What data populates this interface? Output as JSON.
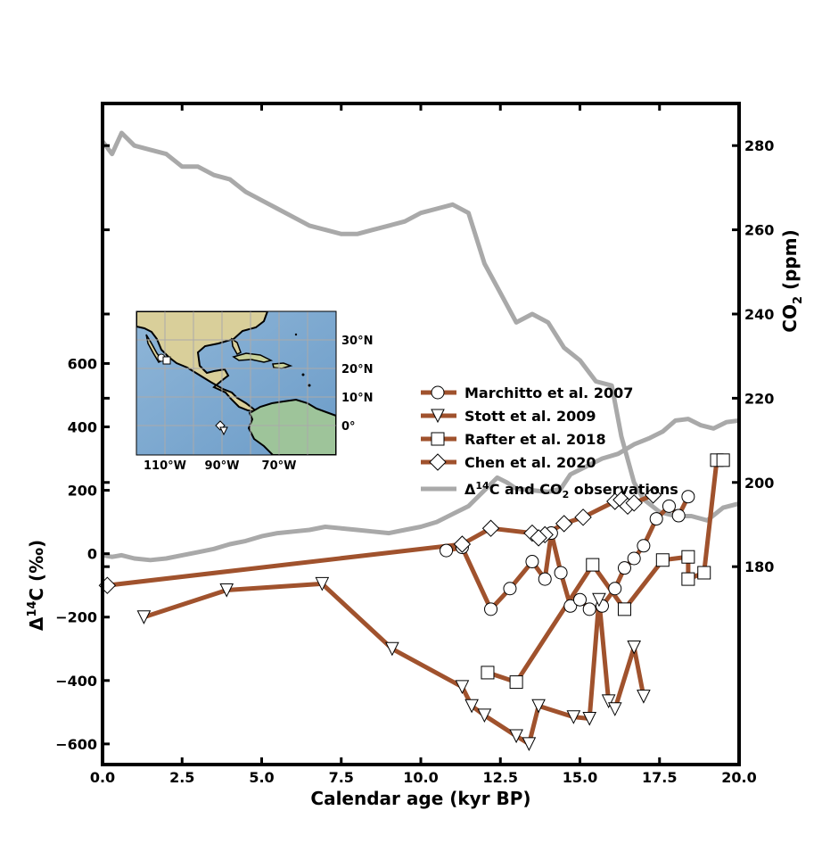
{
  "chart_data": {
    "type": "line",
    "xlabel": "Calendar age (kyr BP)",
    "ylabel_left": "Δ14C (‰)",
    "ylabel_right": "CO2 (ppm)",
    "xlim": [
      0,
      20
    ],
    "ylim_left": [
      -665,
      1420
    ],
    "ylim_right": [
      133,
      290
    ],
    "x_ticks": [
      "0.0",
      "2.5",
      "5.0",
      "7.5",
      "10.0",
      "12.5",
      "15.0",
      "17.5",
      "20.0"
    ],
    "y_left_ticks": [
      "−600",
      "−400",
      "−200",
      "0",
      "200",
      "400",
      "600"
    ],
    "y_right_ticks": [
      "180",
      "200",
      "220",
      "240",
      "260",
      "280"
    ],
    "colors": {
      "record": "#a0522d",
      "observations": "#a9a9a9"
    },
    "series": [
      {
        "name": "Marchitto et al. 2007",
        "marker": "circle",
        "points": [
          [
            10.8,
            10
          ],
          [
            11.3,
            20
          ],
          [
            12.2,
            -175
          ],
          [
            12.8,
            -110
          ],
          [
            13.5,
            -25
          ],
          [
            13.9,
            -80
          ],
          [
            14.1,
            65
          ],
          [
            14.4,
            -60
          ],
          [
            14.7,
            -165
          ],
          [
            15.0,
            -145
          ],
          [
            15.3,
            -175
          ],
          [
            15.7,
            -165
          ],
          [
            16.1,
            -110
          ],
          [
            16.4,
            -45
          ],
          [
            16.7,
            -15
          ],
          [
            17.0,
            25
          ],
          [
            17.4,
            110
          ],
          [
            17.8,
            150
          ],
          [
            18.1,
            120
          ],
          [
            18.4,
            180
          ]
        ]
      },
      {
        "name": "Stott et al. 2009",
        "marker": "triangle-down",
        "points": [
          [
            1.3,
            -200
          ],
          [
            3.9,
            -115
          ],
          [
            6.9,
            -95
          ],
          [
            9.1,
            -300
          ],
          [
            11.3,
            -420
          ],
          [
            11.6,
            -480
          ],
          [
            12.0,
            -510
          ],
          [
            13.0,
            -575
          ],
          [
            13.4,
            -600
          ],
          [
            13.7,
            -480
          ],
          [
            14.8,
            -515
          ],
          [
            15.3,
            -520
          ],
          [
            15.6,
            -145
          ],
          [
            15.9,
            -465
          ],
          [
            16.1,
            -490
          ],
          [
            16.7,
            -295
          ],
          [
            17.0,
            -450
          ]
        ]
      },
      {
        "name": "Rafter et al. 2018",
        "marker": "square",
        "points": [
          [
            12.1,
            -375
          ],
          [
            13.0,
            -405
          ],
          [
            15.4,
            -35
          ],
          [
            16.4,
            -175
          ],
          [
            17.6,
            -20
          ],
          [
            18.4,
            -10
          ],
          [
            18.4,
            -80
          ],
          [
            18.9,
            -60
          ],
          [
            19.3,
            295
          ],
          [
            19.5,
            295
          ]
        ]
      },
      {
        "name": "Chen et al. 2020",
        "marker": "diamond",
        "points": [
          [
            0.15,
            -100
          ],
          [
            11.3,
            30
          ],
          [
            12.2,
            80
          ],
          [
            13.5,
            65
          ],
          [
            13.9,
            60
          ],
          [
            13.7,
            50
          ],
          [
            14.5,
            95
          ],
          [
            15.1,
            115
          ],
          [
            16.1,
            165
          ],
          [
            16.3,
            170
          ],
          [
            16.5,
            150
          ],
          [
            16.7,
            160
          ],
          [
            17.3,
            185
          ]
        ]
      },
      {
        "name": "Δ14C and CO2 observations",
        "role": "observations",
        "d14c_points": [
          [
            0,
            -5
          ],
          [
            0.3,
            -10
          ],
          [
            0.6,
            -5
          ],
          [
            1.0,
            -15
          ],
          [
            1.5,
            -20
          ],
          [
            2.0,
            -15
          ],
          [
            2.5,
            -5
          ],
          [
            3.0,
            5
          ],
          [
            3.5,
            15
          ],
          [
            4.0,
            30
          ],
          [
            4.5,
            40
          ],
          [
            5.0,
            55
          ],
          [
            5.5,
            65
          ],
          [
            6.0,
            70
          ],
          [
            6.5,
            75
          ],
          [
            7.0,
            85
          ],
          [
            7.5,
            80
          ],
          [
            8.0,
            75
          ],
          [
            8.5,
            70
          ],
          [
            9.0,
            65
          ],
          [
            9.5,
            75
          ],
          [
            10.0,
            85
          ],
          [
            10.5,
            100
          ],
          [
            11.0,
            125
          ],
          [
            11.5,
            150
          ],
          [
            12.0,
            200
          ],
          [
            12.4,
            240
          ],
          [
            12.7,
            225
          ],
          [
            13.0,
            205
          ],
          [
            13.5,
            200
          ],
          [
            14.0,
            195
          ],
          [
            14.4,
            205
          ],
          [
            14.7,
            250
          ],
          [
            15.2,
            275
          ],
          [
            15.7,
            300
          ],
          [
            16.2,
            315
          ],
          [
            16.7,
            345
          ],
          [
            17.2,
            365
          ],
          [
            17.6,
            385
          ],
          [
            18.0,
            420
          ],
          [
            18.4,
            425
          ],
          [
            18.8,
            405
          ],
          [
            19.2,
            395
          ],
          [
            19.6,
            415
          ],
          [
            20.0,
            420
          ]
        ],
        "co2_points": [
          [
            0,
            281
          ],
          [
            0.3,
            278
          ],
          [
            0.6,
            283
          ],
          [
            1.0,
            280
          ],
          [
            1.5,
            279
          ],
          [
            2.0,
            278
          ],
          [
            2.5,
            275
          ],
          [
            3.0,
            275
          ],
          [
            3.5,
            273
          ],
          [
            4.0,
            272
          ],
          [
            4.5,
            269
          ],
          [
            5.0,
            267
          ],
          [
            5.5,
            265
          ],
          [
            6.0,
            263
          ],
          [
            6.5,
            261
          ],
          [
            7.0,
            260
          ],
          [
            7.5,
            259
          ],
          [
            8.0,
            259
          ],
          [
            8.5,
            260
          ],
          [
            9.0,
            261
          ],
          [
            9.5,
            262
          ],
          [
            10.0,
            264
          ],
          [
            10.5,
            265
          ],
          [
            11.0,
            266
          ],
          [
            11.5,
            264
          ],
          [
            12.0,
            252
          ],
          [
            12.5,
            245
          ],
          [
            13.0,
            238
          ],
          [
            13.5,
            240
          ],
          [
            14.0,
            238
          ],
          [
            14.5,
            232
          ],
          [
            15.0,
            229
          ],
          [
            15.5,
            224
          ],
          [
            16.0,
            223
          ],
          [
            16.3,
            211
          ],
          [
            16.7,
            200
          ],
          [
            17.0,
            196
          ],
          [
            17.5,
            193
          ],
          [
            18.0,
            192
          ],
          [
            18.5,
            192
          ],
          [
            19.0,
            191
          ],
          [
            19.5,
            194
          ],
          [
            20.0,
            195
          ]
        ]
      }
    ],
    "inset_map": {
      "lon_labels": [
        "110°W",
        "90°W",
        "70°W"
      ],
      "lat_labels": [
        "30°N",
        "20°N",
        "10°N",
        "0°"
      ]
    }
  }
}
